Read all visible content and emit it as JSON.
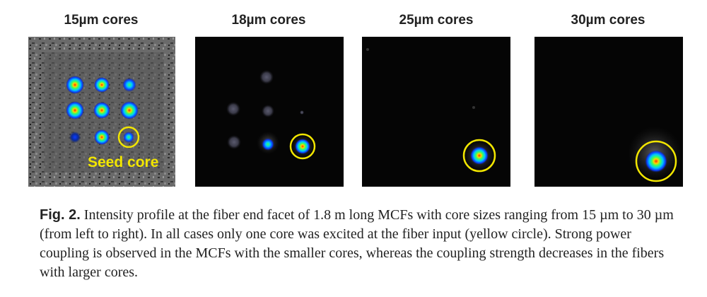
{
  "panels": [
    {
      "title": "15µm cores"
    },
    {
      "title": "18µm cores"
    },
    {
      "title": "25µm cores"
    },
    {
      "title": "30µm cores"
    }
  ],
  "annotation": {
    "seed_core": "Seed core"
  },
  "caption": {
    "label": "Fig. 2.",
    "text": " Intensity profile at the fiber end facet of 1.8 m long MCFs with core sizes ranging from 15 µm to 30 µm (from left to right). In all cases only one core was excited at the fiber input (yellow circle). Strong power coupling is observed in the MCFs with the smaller cores, whereas the coupling strength decreases in the fibers with larger cores."
  },
  "colors": {
    "marker": "#f2e600",
    "annotation_text": "#f2e600",
    "background_dark": "#050505"
  }
}
